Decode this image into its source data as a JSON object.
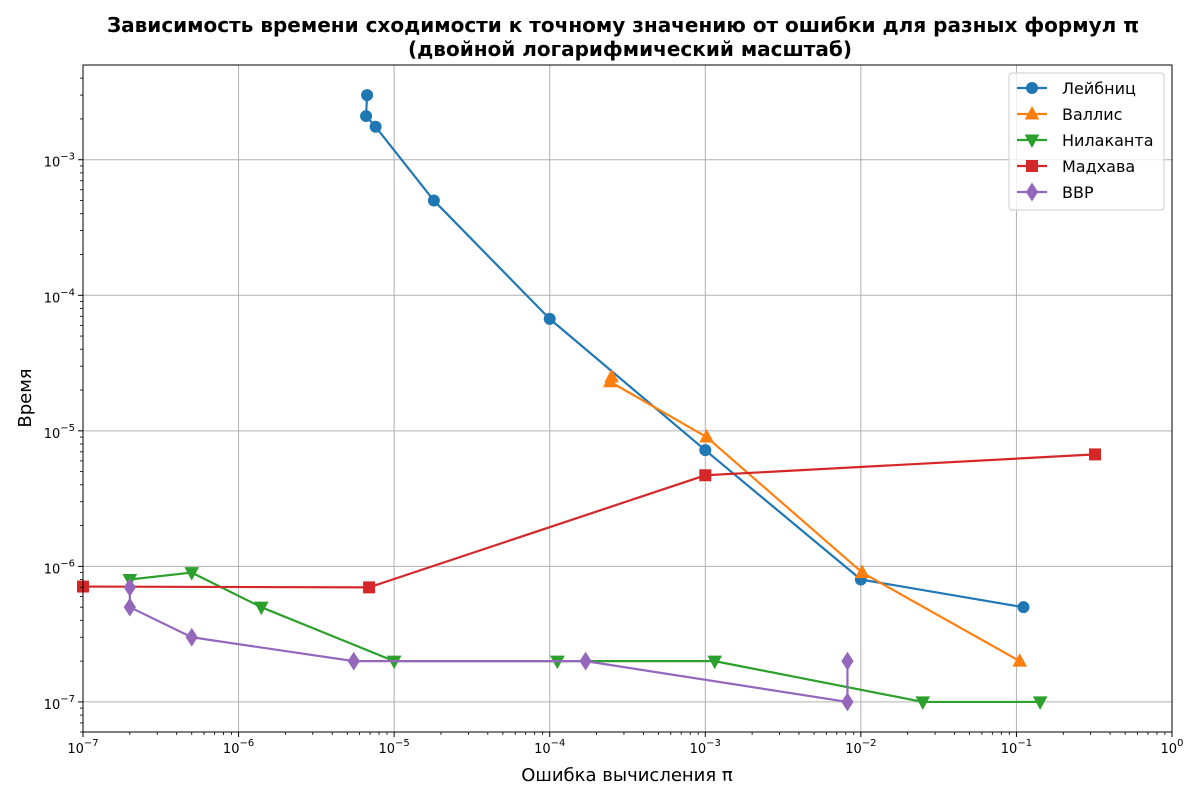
{
  "chart_data": {
    "type": "line",
    "title": "Зависимость времени сходимости к точному значению от ошибки для разных формул π",
    "subtitle": "(двойной логарифмический масштаб)",
    "xlabel": "Ошибка вычисления π",
    "ylabel": "Время",
    "x_scale": "log",
    "y_scale": "log",
    "xlim": [
      1e-07,
      1
    ],
    "ylim": [
      6e-08,
      0.005
    ],
    "grid": true,
    "legend_position": "top-right",
    "x_ticks": [
      {
        "value": 1e-07,
        "mantissa": "10",
        "exp": "−7"
      },
      {
        "value": 1e-06,
        "mantissa": "10",
        "exp": "−6"
      },
      {
        "value": 1e-05,
        "mantissa": "10",
        "exp": "−5"
      },
      {
        "value": 0.0001,
        "mantissa": "10",
        "exp": "−4"
      },
      {
        "value": 0.001,
        "mantissa": "10",
        "exp": "−3"
      },
      {
        "value": 0.01,
        "mantissa": "10",
        "exp": "−2"
      },
      {
        "value": 0.1,
        "mantissa": "10",
        "exp": "−1"
      },
      {
        "value": 1,
        "mantissa": "10",
        "exp": "0"
      }
    ],
    "y_ticks": [
      {
        "value": 1e-07,
        "mantissa": "10",
        "exp": "−7"
      },
      {
        "value": 1e-06,
        "mantissa": "10",
        "exp": "−6"
      },
      {
        "value": 1e-05,
        "mantissa": "10",
        "exp": "−5"
      },
      {
        "value": 0.0001,
        "mantissa": "10",
        "exp": "−4"
      },
      {
        "value": 0.001,
        "mantissa": "10",
        "exp": "−3"
      }
    ],
    "series": [
      {
        "name": "Лейбниц",
        "color": "#1f77b4",
        "marker": "circle",
        "x": [
          0.111,
          0.01,
          0.001,
          0.0001,
          1.8e-05,
          7.6e-06,
          6.6e-06,
          6.7e-06
        ],
        "y": [
          5e-07,
          8e-07,
          7.2e-06,
          6.7e-05,
          0.0005,
          0.00175,
          0.0021,
          0.003
        ]
      },
      {
        "name": "Валлис",
        "color": "#ff7f0e",
        "marker": "triangle-up",
        "x": [
          0.105,
          0.0102,
          0.00102,
          0.000245,
          0.00025
        ],
        "y": [
          2e-07,
          9e-07,
          9e-06,
          2.3e-05,
          2.5e-05
        ]
      },
      {
        "name": "Нилаканта",
        "color": "#2ca02c",
        "marker": "triangle-down",
        "x": [
          2e-07,
          5e-07,
          1.4e-06,
          1e-05,
          0.000112,
          0.00115,
          0.025,
          0.142
        ],
        "y": [
          8e-07,
          9e-07,
          5e-07,
          2e-07,
          2e-07,
          2e-07,
          1e-07,
          1e-07
        ]
      },
      {
        "name": "Мадхава",
        "color": "#d62728",
        "marker": "square",
        "x": [
          1e-07,
          6.9e-06,
          0.001,
          0.32
        ],
        "y": [
          7.1e-07,
          7e-07,
          4.7e-06,
          6.7e-06
        ]
      },
      {
        "name": "BBP",
        "color": "#9467bd",
        "marker": "diamond",
        "x": [
          2e-07,
          2e-07,
          5e-07,
          5.5e-06,
          0.00017,
          0.0082,
          0.0082
        ],
        "y": [
          7e-07,
          5e-07,
          3e-07,
          2e-07,
          2e-07,
          1e-07,
          2e-07
        ]
      }
    ]
  }
}
